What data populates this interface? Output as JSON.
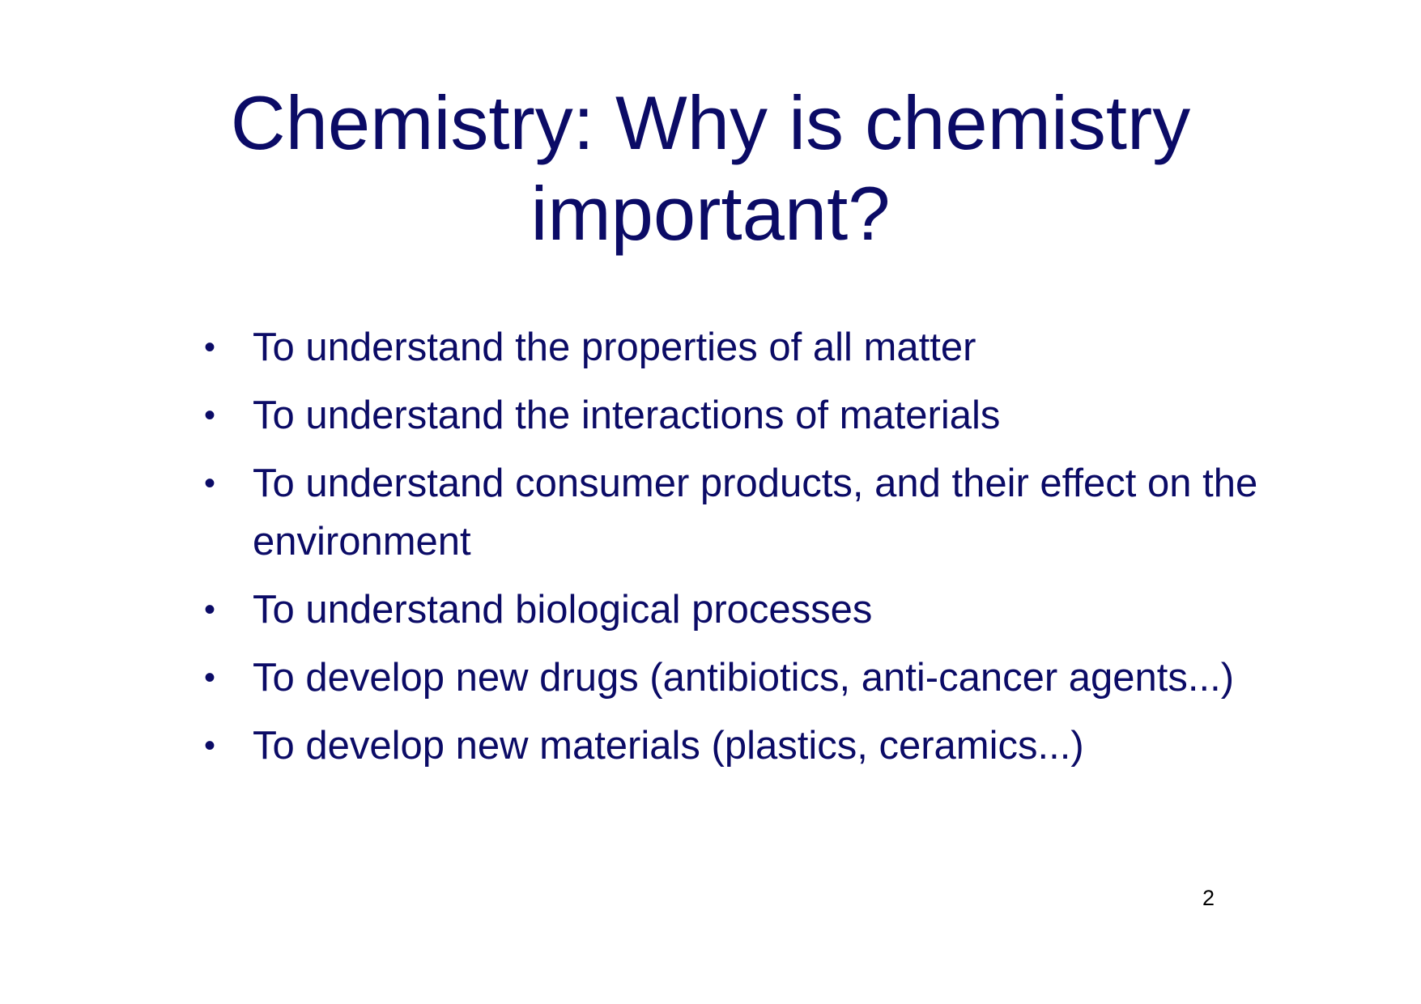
{
  "slide": {
    "title_line1": "Chemistry: Why is chemistry",
    "title_line2": "important?",
    "bullet_symbol": "•",
    "bullets": [
      "To understand the properties of all matter",
      "To understand the interactions of materials",
      "To understand consumer products, and their effect on the environment",
      "To understand biological processes",
      "To develop new drugs (antibiotics, anti-cancer agents...)",
      "To develop new materials (plastics, ceramics...)"
    ],
    "page_number": "2"
  }
}
